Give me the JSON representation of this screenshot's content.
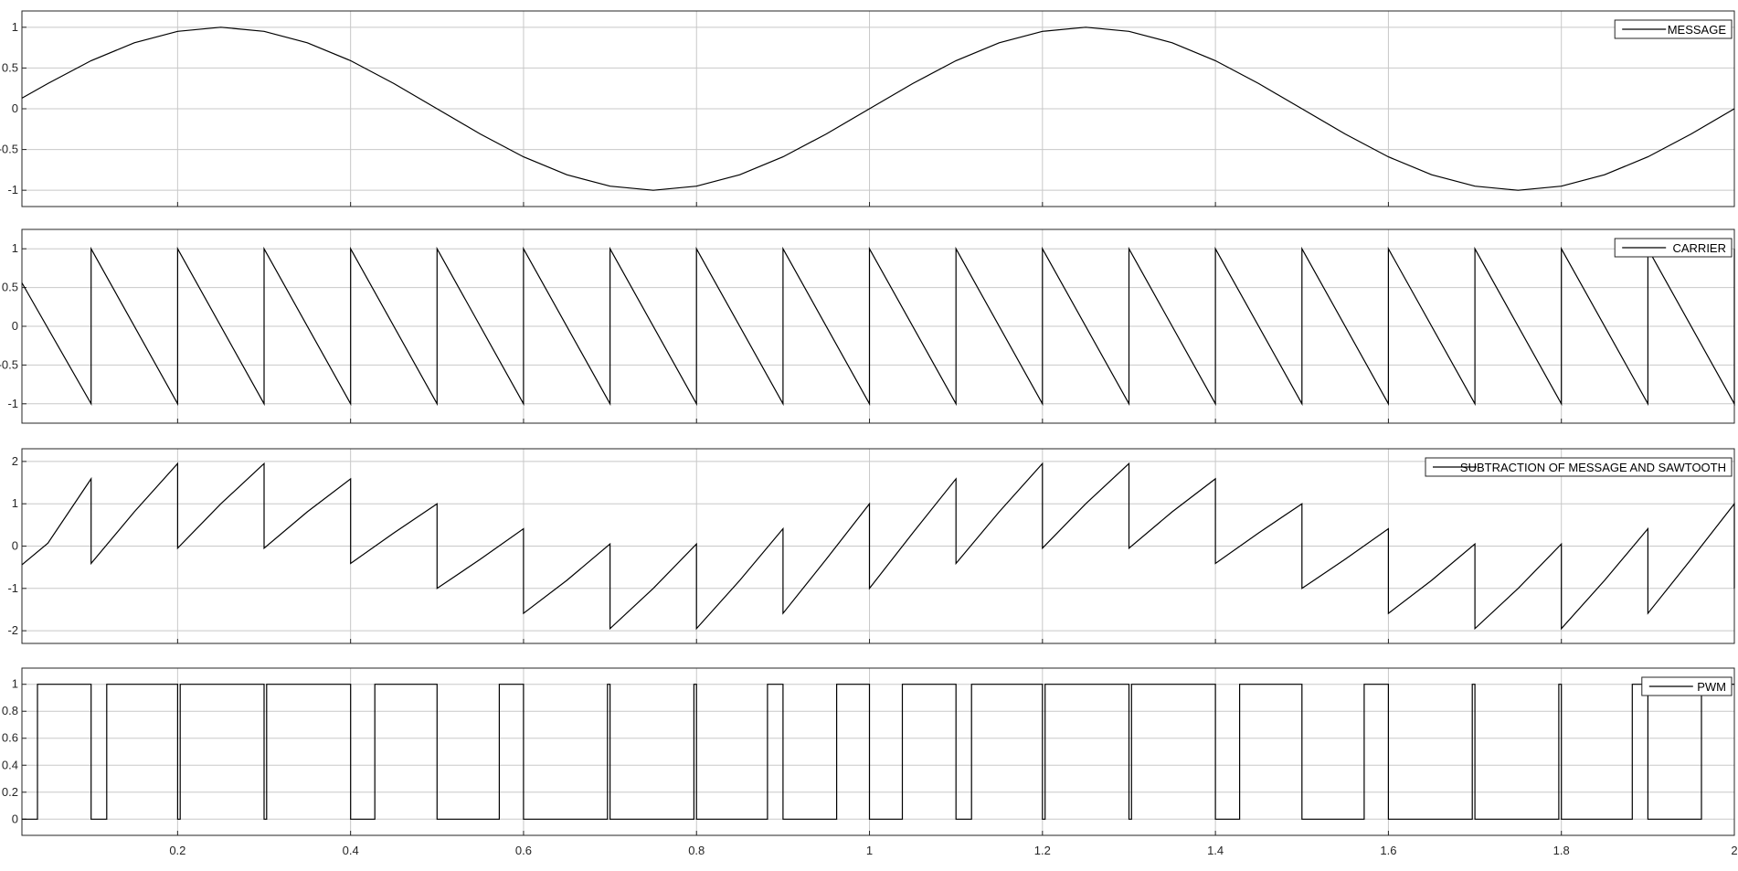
{
  "chart_data": [
    {
      "type": "line",
      "title": "",
      "xlabel": "",
      "ylabel": "",
      "legend_placement": "top-right",
      "grid": true,
      "xlim": [
        0.02,
        2
      ],
      "ylim": [
        -1.2,
        1.2
      ],
      "yticks": [
        -1,
        -0.5,
        0,
        0.5,
        1
      ],
      "xticks": [
        0.2,
        0.4,
        0.6,
        0.8,
        1,
        1.2,
        1.4,
        1.6,
        1.8,
        2
      ],
      "series": [
        {
          "name": "MESSAGE",
          "color": "#000000",
          "points": [
            [
              0.02,
              0.13
            ],
            [
              0.05,
              0.31
            ],
            [
              0.1,
              0.59
            ],
            [
              0.15,
              0.81
            ],
            [
              0.2,
              0.95
            ],
            [
              0.25,
              1
            ],
            [
              0.3,
              0.95
            ],
            [
              0.35,
              0.81
            ],
            [
              0.4,
              0.59
            ],
            [
              0.45,
              0.31
            ],
            [
              0.5,
              0
            ],
            [
              0.55,
              -0.31
            ],
            [
              0.6,
              -0.59
            ],
            [
              0.65,
              -0.81
            ],
            [
              0.7,
              -0.95
            ],
            [
              0.75,
              -1
            ],
            [
              0.8,
              -0.95
            ],
            [
              0.85,
              -0.81
            ],
            [
              0.9,
              -0.59
            ],
            [
              0.95,
              -0.31
            ],
            [
              1,
              0
            ],
            [
              1.05,
              0.31
            ],
            [
              1.1,
              0.59
            ],
            [
              1.15,
              0.81
            ],
            [
              1.2,
              0.95
            ],
            [
              1.25,
              1
            ],
            [
              1.3,
              0.95
            ],
            [
              1.35,
              0.81
            ],
            [
              1.4,
              0.59
            ],
            [
              1.45,
              0.31
            ],
            [
              1.5,
              0
            ],
            [
              1.55,
              -0.31
            ],
            [
              1.6,
              -0.59
            ],
            [
              1.65,
              -0.81
            ],
            [
              1.7,
              -0.95
            ],
            [
              1.75,
              -1
            ],
            [
              1.8,
              -0.95
            ],
            [
              1.85,
              -0.81
            ],
            [
              1.9,
              -0.59
            ],
            [
              1.95,
              -0.31
            ],
            [
              2,
              0
            ]
          ]
        }
      ]
    },
    {
      "type": "line",
      "title": "",
      "xlabel": "",
      "ylabel": "",
      "legend_placement": "top-right",
      "grid": true,
      "xlim": [
        0.02,
        2
      ],
      "ylim": [
        -1.25,
        1.25
      ],
      "yticks": [
        -1,
        -0.5,
        0,
        0.5,
        1
      ],
      "xticks": [
        0.2,
        0.4,
        0.6,
        0.8,
        1,
        1.2,
        1.4,
        1.6,
        1.8,
        2
      ],
      "series": [
        {
          "name": "CARRIER",
          "color": "#000000",
          "points": [
            [
              0.02,
              0.56
            ],
            [
              0.1,
              -1
            ],
            [
              0.1,
              1
            ],
            [
              0.2,
              -1
            ],
            [
              0.2,
              1
            ],
            [
              0.3,
              -1
            ],
            [
              0.3,
              1
            ],
            [
              0.4,
              -1
            ],
            [
              0.4,
              1
            ],
            [
              0.5,
              -1
            ],
            [
              0.5,
              1
            ],
            [
              0.6,
              -1
            ],
            [
              0.6,
              1
            ],
            [
              0.7,
              -1
            ],
            [
              0.7,
              1
            ],
            [
              0.8,
              -1
            ],
            [
              0.8,
              1
            ],
            [
              0.9,
              -1
            ],
            [
              0.9,
              1
            ],
            [
              1,
              -1
            ],
            [
              1,
              1
            ],
            [
              1.1,
              -1
            ],
            [
              1.1,
              1
            ],
            [
              1.2,
              -1
            ],
            [
              1.2,
              1
            ],
            [
              1.3,
              -1
            ],
            [
              1.3,
              1
            ],
            [
              1.4,
              -1
            ],
            [
              1.4,
              1
            ],
            [
              1.5,
              -1
            ],
            [
              1.5,
              1
            ],
            [
              1.6,
              -1
            ],
            [
              1.6,
              1
            ],
            [
              1.7,
              -1
            ],
            [
              1.7,
              1
            ],
            [
              1.8,
              -1
            ],
            [
              1.8,
              1
            ],
            [
              1.9,
              -1
            ],
            [
              1.9,
              1
            ],
            [
              2,
              -1
            ],
            [
              2,
              1
            ]
          ]
        }
      ]
    },
    {
      "type": "line",
      "title": "",
      "xlabel": "",
      "ylabel": "",
      "legend_placement": "top-right",
      "grid": true,
      "xlim": [
        0.02,
        2
      ],
      "ylim": [
        -2.3,
        2.3
      ],
      "yticks": [
        -2,
        -1,
        0,
        1,
        2
      ],
      "xticks": [
        0.2,
        0.4,
        0.6,
        0.8,
        1,
        1.2,
        1.4,
        1.6,
        1.8,
        2
      ],
      "series": [
        {
          "name": "SUBTRACTION OF MESSAGE AND SAWTOOTH",
          "color": "#000000",
          "points": [
            [
              0.02,
              -0.44
            ],
            [
              0.05,
              0.07
            ],
            [
              0.1,
              1.59
            ],
            [
              0.1,
              -0.41
            ],
            [
              0.15,
              0.81
            ],
            [
              0.2,
              1.95
            ],
            [
              0.2,
              -0.05
            ],
            [
              0.25,
              1
            ],
            [
              0.3,
              1.95
            ],
            [
              0.3,
              -0.05
            ],
            [
              0.35,
              0.81
            ],
            [
              0.4,
              1.59
            ],
            [
              0.4,
              -0.41
            ],
            [
              0.45,
              0.31
            ],
            [
              0.5,
              1
            ],
            [
              0.5,
              -1
            ],
            [
              0.55,
              -0.31
            ],
            [
              0.6,
              0.41
            ],
            [
              0.6,
              -1.59
            ],
            [
              0.65,
              -0.81
            ],
            [
              0.7,
              0.05
            ],
            [
              0.7,
              -1.95
            ],
            [
              0.75,
              -1
            ],
            [
              0.8,
              0.05
            ],
            [
              0.8,
              -1.95
            ],
            [
              0.85,
              -0.81
            ],
            [
              0.9,
              0.41
            ],
            [
              0.9,
              -1.59
            ],
            [
              0.95,
              -0.31
            ],
            [
              1,
              1
            ],
            [
              1,
              -1
            ],
            [
              1.05,
              0.31
            ],
            [
              1.1,
              1.59
            ],
            [
              1.1,
              -0.41
            ],
            [
              1.15,
              0.81
            ],
            [
              1.2,
              1.95
            ],
            [
              1.2,
              -0.05
            ],
            [
              1.25,
              1
            ],
            [
              1.3,
              1.95
            ],
            [
              1.3,
              -0.05
            ],
            [
              1.35,
              0.81
            ],
            [
              1.4,
              1.59
            ],
            [
              1.4,
              -0.41
            ],
            [
              1.45,
              0.31
            ],
            [
              1.5,
              1
            ],
            [
              1.5,
              -1
            ],
            [
              1.55,
              -0.31
            ],
            [
              1.6,
              0.41
            ],
            [
              1.6,
              -1.59
            ],
            [
              1.65,
              -0.81
            ],
            [
              1.7,
              0.05
            ],
            [
              1.7,
              -1.95
            ],
            [
              1.75,
              -1
            ],
            [
              1.8,
              0.05
            ],
            [
              1.8,
              -1.95
            ],
            [
              1.85,
              -0.81
            ],
            [
              1.9,
              0.41
            ],
            [
              1.9,
              -1.59
            ],
            [
              1.95,
              -0.31
            ],
            [
              2,
              1
            ],
            [
              2,
              -1
            ]
          ]
        }
      ]
    },
    {
      "type": "line",
      "title": "",
      "xlabel": "",
      "ylabel": "",
      "legend_placement": "top-right",
      "grid": true,
      "xlim": [
        0.02,
        2
      ],
      "ylim": [
        -0.12,
        1.12
      ],
      "yticks": [
        0,
        0.2,
        0.4,
        0.6,
        0.8,
        1
      ],
      "xticks": [
        0.2,
        0.4,
        0.6,
        0.8,
        1,
        1.2,
        1.4,
        1.6,
        1.8,
        2
      ],
      "series": [
        {
          "name": "PWM",
          "color": "#000000",
          "points": [
            [
              0.02,
              0
            ],
            [
              0.038,
              0
            ],
            [
              0.038,
              1
            ],
            [
              0.1,
              1
            ],
            [
              0.1,
              0
            ],
            [
              0.118,
              0
            ],
            [
              0.118,
              1
            ],
            [
              0.2,
              1
            ],
            [
              0.2,
              0
            ],
            [
              0.203,
              0
            ],
            [
              0.203,
              1
            ],
            [
              0.3,
              1
            ],
            [
              0.3,
              0
            ],
            [
              0.303,
              0
            ],
            [
              0.303,
              1
            ],
            [
              0.4,
              1
            ],
            [
              0.4,
              0
            ],
            [
              0.428,
              0
            ],
            [
              0.428,
              1
            ],
            [
              0.5,
              1
            ],
            [
              0.5,
              0
            ],
            [
              0.572,
              0
            ],
            [
              0.572,
              1
            ],
            [
              0.6,
              1
            ],
            [
              0.6,
              0
            ],
            [
              0.697,
              0
            ],
            [
              0.697,
              1
            ],
            [
              0.7,
              1
            ],
            [
              0.7,
              0
            ],
            [
              0.797,
              0
            ],
            [
              0.797,
              1
            ],
            [
              0.8,
              1
            ],
            [
              0.8,
              0
            ],
            [
              0.882,
              0
            ],
            [
              0.882,
              1
            ],
            [
              0.9,
              1
            ],
            [
              0.9,
              0
            ],
            [
              0.962,
              0
            ],
            [
              0.962,
              1
            ],
            [
              1,
              1
            ],
            [
              1,
              0
            ],
            [
              1.038,
              0
            ],
            [
              1.038,
              1
            ],
            [
              1.1,
              1
            ],
            [
              1.1,
              0
            ],
            [
              1.118,
              0
            ],
            [
              1.118,
              1
            ],
            [
              1.2,
              1
            ],
            [
              1.2,
              0
            ],
            [
              1.203,
              0
            ],
            [
              1.203,
              1
            ],
            [
              1.3,
              1
            ],
            [
              1.3,
              0
            ],
            [
              1.303,
              0
            ],
            [
              1.303,
              1
            ],
            [
              1.4,
              1
            ],
            [
              1.4,
              0
            ],
            [
              1.428,
              0
            ],
            [
              1.428,
              1
            ],
            [
              1.5,
              1
            ],
            [
              1.5,
              0
            ],
            [
              1.572,
              0
            ],
            [
              1.572,
              1
            ],
            [
              1.6,
              1
            ],
            [
              1.6,
              0
            ],
            [
              1.697,
              0
            ],
            [
              1.697,
              1
            ],
            [
              1.7,
              1
            ],
            [
              1.7,
              0
            ],
            [
              1.797,
              0
            ],
            [
              1.797,
              1
            ],
            [
              1.8,
              1
            ],
            [
              1.8,
              0
            ],
            [
              1.882,
              0
            ],
            [
              1.882,
              1
            ],
            [
              1.9,
              1
            ],
            [
              1.9,
              0
            ],
            [
              1.962,
              0
            ],
            [
              1.962,
              1
            ],
            [
              2,
              1
            ]
          ]
        }
      ]
    }
  ]
}
